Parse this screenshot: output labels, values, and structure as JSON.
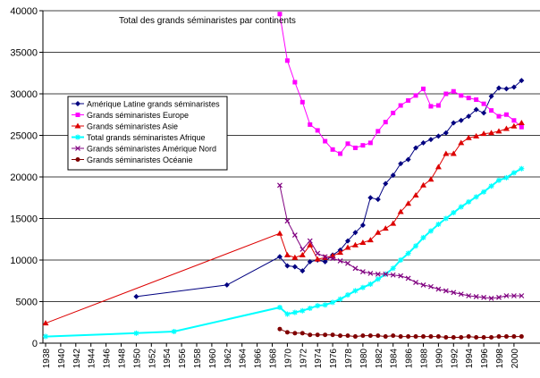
{
  "chart_data": {
    "type": "line",
    "title": "Total des grands séminaristes par continents",
    "xlabel": "",
    "ylabel": "",
    "xlim": [
      1938,
      2002
    ],
    "ylim": [
      0,
      40000
    ],
    "y_ticks": [
      0,
      5000,
      10000,
      15000,
      20000,
      25000,
      30000,
      35000,
      40000
    ],
    "x_ticks": [
      1938,
      1940,
      1942,
      1944,
      1946,
      1948,
      1950,
      1952,
      1954,
      1956,
      1958,
      1960,
      1962,
      1964,
      1966,
      1968,
      1970,
      1972,
      1974,
      1976,
      1978,
      1980,
      1982,
      1984,
      1986,
      1988,
      1990,
      1992,
      1994,
      1996,
      1998,
      2000
    ],
    "grid": "horizontal",
    "legend_position": "left",
    "series": [
      {
        "name": "Amérique Latine grands séminaristes",
        "color": "#000080",
        "marker": "diamond",
        "x": [
          1950,
          1962,
          1969,
          1970,
          1971,
          1972,
          1973,
          1974,
          1975,
          1976,
          1977,
          1978,
          1979,
          1980,
          1981,
          1982,
          1983,
          1984,
          1985,
          1986,
          1987,
          1988,
          1989,
          1990,
          1991,
          1992,
          1993,
          1994,
          1995,
          1996,
          1997,
          1998,
          1999,
          2000,
          2001
        ],
        "y": [
          5600,
          7000,
          10400,
          9300,
          9200,
          8700,
          9800,
          10000,
          9800,
          10600,
          11200,
          12300,
          13300,
          14200,
          17500,
          17300,
          19200,
          20200,
          21600,
          22100,
          23500,
          24100,
          24500,
          24900,
          25300,
          26500,
          26800,
          27300,
          28100,
          27700,
          29700,
          30700,
          30600,
          30800,
          31600
        ]
      },
      {
        "name": "Grands séminaristes Europe",
        "color": "#ff00ff",
        "marker": "square",
        "x": [
          1969,
          1970,
          1971,
          1972,
          1973,
          1974,
          1975,
          1976,
          1977,
          1978,
          1979,
          1980,
          1981,
          1982,
          1983,
          1984,
          1985,
          1986,
          1987,
          1988,
          1989,
          1990,
          1991,
          1992,
          1993,
          1994,
          1995,
          1996,
          1997,
          1998,
          1999,
          2000,
          2001
        ],
        "y": [
          39600,
          34000,
          31400,
          29000,
          26300,
          25600,
          24300,
          23300,
          22800,
          24000,
          23500,
          23800,
          24100,
          25500,
          26600,
          27700,
          28600,
          29200,
          29800,
          30600,
          28500,
          28600,
          30000,
          30300,
          29800,
          29500,
          29300,
          28800,
          28000,
          27300,
          27500,
          26800,
          26000
        ]
      },
      {
        "name": "Grands séminaristes Asie",
        "color": "#dd0000",
        "marker": "triangle",
        "x": [
          1938,
          1969,
          1970,
          1971,
          1972,
          1973,
          1974,
          1975,
          1976,
          1977,
          1978,
          1979,
          1980,
          1981,
          1982,
          1983,
          1984,
          1985,
          1986,
          1987,
          1988,
          1989,
          1990,
          1991,
          1992,
          1993,
          1994,
          1995,
          1996,
          1997,
          1998,
          1999,
          2000,
          2001
        ],
        "y": [
          2400,
          13200,
          10600,
          10300,
          10600,
          11800,
          10100,
          10300,
          10500,
          10900,
          11500,
          11800,
          12100,
          12400,
          13300,
          13800,
          14400,
          15800,
          16800,
          17800,
          19000,
          19700,
          21200,
          22800,
          22800,
          24100,
          24700,
          24900,
          25200,
          25300,
          25500,
          25800,
          26100,
          26500
        ]
      },
      {
        "name": "Total grands séminaristes Afrique",
        "color": "#00ffff",
        "marker": "star",
        "x": [
          1938,
          1950,
          1955,
          1969,
          1970,
          1971,
          1972,
          1973,
          1974,
          1975,
          1976,
          1977,
          1978,
          1979,
          1980,
          1981,
          1982,
          1983,
          1984,
          1985,
          1986,
          1987,
          1988,
          1989,
          1990,
          1991,
          1992,
          1993,
          1994,
          1995,
          1996,
          1997,
          1998,
          1999,
          2000,
          2001
        ],
        "y": [
          800,
          1200,
          1400,
          4300,
          3500,
          3700,
          3900,
          4200,
          4500,
          4600,
          4900,
          5300,
          5800,
          6300,
          6700,
          7100,
          7700,
          8300,
          9000,
          10000,
          10800,
          11700,
          12700,
          13500,
          14300,
          15000,
          15700,
          16400,
          17000,
          17600,
          18200,
          18900,
          19600,
          19900,
          20500,
          21000
        ]
      },
      {
        "name": "Grands séminaristes Amérique Nord",
        "color": "#800080",
        "marker": "x",
        "x": [
          1969,
          1970,
          1971,
          1972,
          1973,
          1974,
          1975,
          1976,
          1977,
          1978,
          1979,
          1980,
          1981,
          1982,
          1983,
          1984,
          1985,
          1986,
          1987,
          1988,
          1989,
          1990,
          1991,
          1992,
          1993,
          1994,
          1995,
          1996,
          1997,
          1998,
          1999,
          2000,
          2001
        ],
        "y": [
          19000,
          14700,
          13000,
          11300,
          12300,
          10800,
          10400,
          10200,
          9900,
          9600,
          9000,
          8600,
          8400,
          8300,
          8300,
          8200,
          8100,
          7800,
          7300,
          7000,
          6800,
          6500,
          6300,
          6100,
          5900,
          5700,
          5600,
          5500,
          5400,
          5500,
          5700,
          5700,
          5700
        ]
      },
      {
        "name": "Grands séminaristes Océanie",
        "color": "#800000",
        "marker": "circle",
        "x": [
          1969,
          1970,
          1971,
          1972,
          1973,
          1974,
          1975,
          1976,
          1977,
          1978,
          1979,
          1980,
          1981,
          1982,
          1983,
          1984,
          1985,
          1986,
          1987,
          1988,
          1989,
          1990,
          1991,
          1992,
          1993,
          1994,
          1995,
          1996,
          1997,
          1998,
          1999,
          2000,
          2001
        ],
        "y": [
          1700,
          1300,
          1200,
          1200,
          1000,
          1000,
          1000,
          1000,
          900,
          900,
          800,
          900,
          900,
          900,
          800,
          900,
          800,
          800,
          800,
          800,
          800,
          800,
          700,
          700,
          700,
          800,
          700,
          700,
          700,
          800,
          800,
          800,
          800
        ]
      }
    ]
  }
}
